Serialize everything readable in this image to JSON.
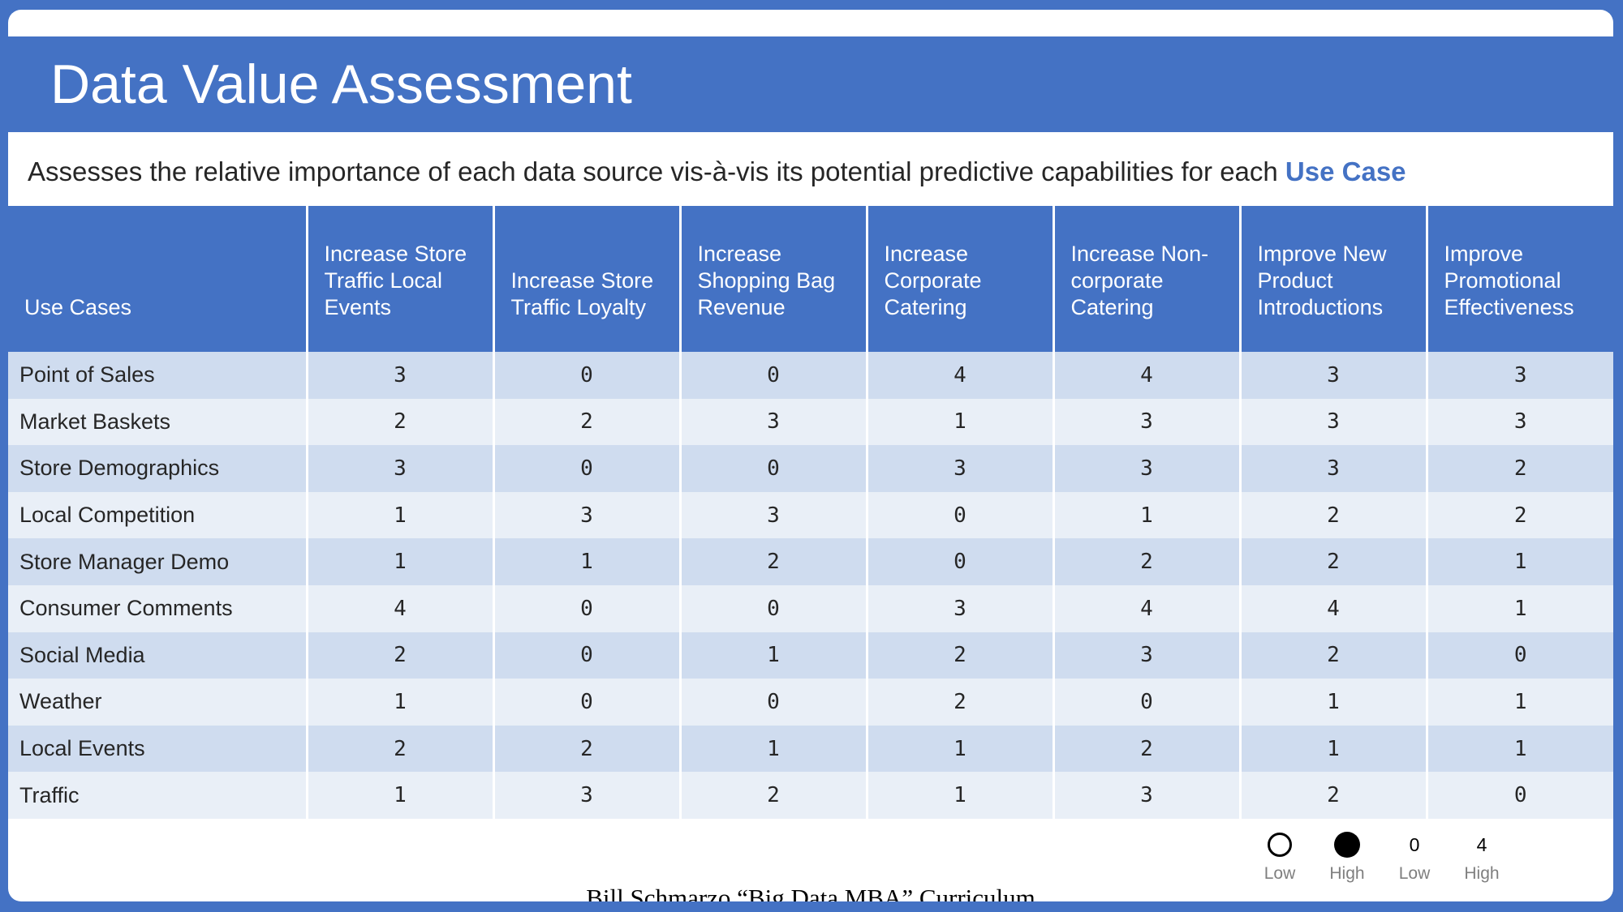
{
  "title": "Data Value Assessment",
  "subtitle": {
    "text": "Assesses the relative importance of each data source vis-à-vis its potential predictive capabilities for each ",
    "accent": "Use Case"
  },
  "colors": {
    "accent": "#4472c4",
    "row_dark": "#cfdcef",
    "row_light": "#e9eff7"
  },
  "table": {
    "corner_label": "Use Cases",
    "columns": [
      "Increase Store Traffic Local Events",
      "Increase Store Traffic Loyalty",
      "Increase Shopping Bag Revenue",
      "Increase Corporate Catering",
      "Increase Non-corporate Catering",
      "Improve New Product Introductions",
      "Improve Promotional Effectiveness"
    ],
    "rows": [
      {
        "label": "Point of Sales",
        "values": [
          "3",
          "0",
          "0",
          "4",
          "4",
          "3",
          "3"
        ]
      },
      {
        "label": "Market Baskets",
        "values": [
          "2",
          "2",
          "3",
          "1",
          "3",
          "3",
          "3"
        ]
      },
      {
        "label": "Store Demographics",
        "values": [
          "3",
          "0",
          "0",
          "3",
          "3",
          "3",
          "2"
        ]
      },
      {
        "label": "Local Competition",
        "values": [
          "1",
          "3",
          "3",
          "0",
          "1",
          "2",
          "2"
        ]
      },
      {
        "label": "Store Manager Demo",
        "values": [
          "1",
          "1",
          "2",
          "0",
          "2",
          "2",
          "1"
        ]
      },
      {
        "label": "Consumer Comments",
        "values": [
          "4",
          "0",
          "0",
          "3",
          "4",
          "4",
          "1"
        ]
      },
      {
        "label": "Social Media",
        "values": [
          "2",
          "0",
          "1",
          "2",
          "3",
          "2",
          "0"
        ]
      },
      {
        "label": "Weather",
        "values": [
          "1",
          "0",
          "0",
          "2",
          "0",
          "1",
          "1"
        ]
      },
      {
        "label": "Local Events",
        "values": [
          "2",
          "2",
          "1",
          "1",
          "2",
          "1",
          "1"
        ]
      },
      {
        "label": "Traffic",
        "values": [
          "1",
          "3",
          "2",
          "1",
          "3",
          "2",
          "0"
        ]
      }
    ]
  },
  "legend": {
    "empty_circle_label": "Low",
    "filled_circle_label": "High",
    "low_number": "0",
    "low_number_label": "Low",
    "high_number": "4",
    "high_number_label": "High"
  },
  "credit": "Bill Schmarzo “Big Data MBA” Curriculum"
}
